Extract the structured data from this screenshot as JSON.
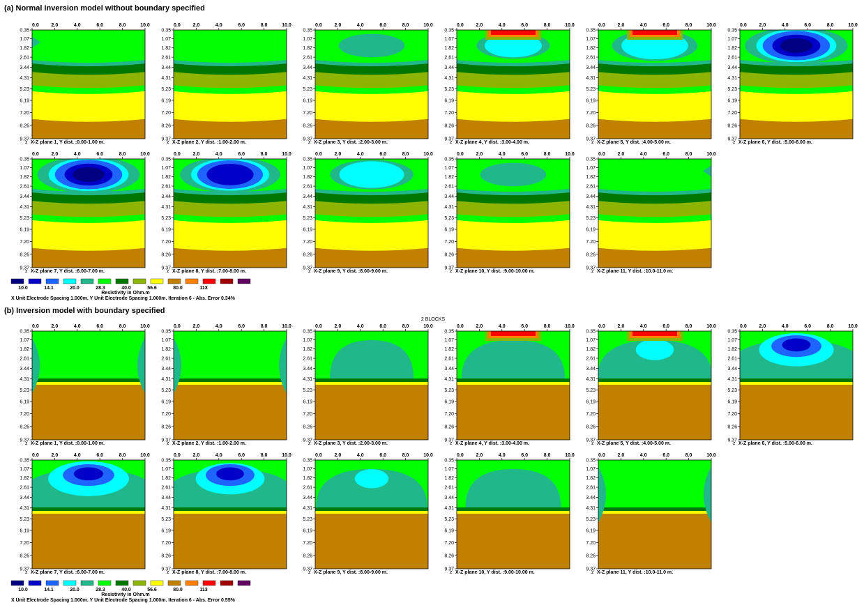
{
  "sections": [
    {
      "title": "(a)  Normal inversion model without boundary specified",
      "model": "normal",
      "annotation": "",
      "footer": "X Unit Electrode Spacing 1.000m.  Y Unit Electrode Spacing 1.000m.    Iteration 6 - Abs. Error 0.34%"
    },
    {
      "title": "(b)  Inversion model with boundary specified",
      "model": "boundary",
      "annotation": "2 BLOCKS",
      "footer": "X Unit Electrode Spacing 1.000m.  Y Unit Electrode Spacing 1.000m.    Iteration 6 - Abs. Error 0.55%"
    }
  ],
  "x_ticks": [
    "0.0",
    "2.0",
    "4.0",
    "6.0",
    "8.0",
    "10.0"
  ],
  "depth_ticks": [
    "0.35",
    "1.07",
    "1.82",
    "2.61",
    "3.44",
    "4.31",
    "5.23",
    "6.19",
    "7.20",
    "8.26",
    "9.37"
  ],
  "depth_values": [
    0.35,
    1.07,
    1.82,
    2.61,
    3.44,
    4.31,
    5.23,
    6.19,
    7.2,
    8.26,
    9.37
  ],
  "z_label": "z",
  "planes": [
    {
      "label": "X-Z plane 1, Y dist. :0.00-1.00 m.",
      "y_center": 0.5,
      "intensity": [
        0.0,
        0.0
      ]
    },
    {
      "label": "X-Z plane 2, Y dist. :1.00-2.00 m.",
      "y_center": 1.5,
      "intensity": [
        0.0,
        0.0
      ]
    },
    {
      "label": "X-Z plane 3, Y dist. :2.00-3.00 m.",
      "y_center": 2.5,
      "intensity": [
        0.25,
        0.2
      ]
    },
    {
      "label": "X-Z plane 4, Y dist. :3.00-4.00 m.",
      "y_center": 3.5,
      "intensity": [
        0.4,
        0.45
      ]
    },
    {
      "label": "X-Z plane 5, Y dist. :4.00-5.00 m.",
      "y_center": 4.5,
      "intensity": [
        0.65,
        0.6
      ]
    },
    {
      "label": "X-Z plane 6, Y dist. :5.00-6.00 m.",
      "y_center": 5.5,
      "intensity": [
        1.0,
        0.95
      ]
    },
    {
      "label": "X-Z plane 7, Y dist. :6.00-7.00 m.",
      "y_center": 6.5,
      "intensity": [
        1.0,
        1.0
      ]
    },
    {
      "label": "X-Z plane 8, Y dist. :7.00-8.00 m.",
      "y_center": 7.5,
      "intensity": [
        0.95,
        0.9
      ]
    },
    {
      "label": "X-Z plane 9, Y dist. :8.00-9.00 m.",
      "y_center": 8.5,
      "intensity": [
        0.6,
        0.55
      ]
    },
    {
      "label": "X-Z plane 10, Y dist. :9.00-10.00 m.",
      "y_center": 9.5,
      "intensity": [
        0.25,
        0.35
      ]
    },
    {
      "label": "X-Z plane 11, Y dist. :10.0-11.0 m.",
      "y_center": 10.5,
      "intensity": [
        0.0,
        0.0
      ]
    }
  ],
  "conductive_top_planes": [
    4,
    5
  ],
  "legend": {
    "title": "Resistivity in Ohm.m",
    "labels": [
      "10.0",
      "14.1",
      "20.0",
      "28.3",
      "40.0",
      "56.6",
      "80.0",
      "113"
    ],
    "colors": [
      "#000080",
      "#0000c8",
      "#1e64ff",
      "#00ffff",
      "#20b88a",
      "#00ff00",
      "#007800",
      "#8cb400",
      "#ffff00",
      "#c08000",
      "#ff8000",
      "#ff0000",
      "#a00000",
      "#600060"
    ]
  },
  "chart_data": {
    "type": "heatmap",
    "x_range": [
      0,
      10
    ],
    "depth_range": [
      0.35,
      9.37
    ],
    "unit": "Ohm.m",
    "legend_thresholds": [
      10.0,
      14.1,
      20.0,
      28.3,
      40.0,
      56.6,
      80.0,
      113
    ]
  }
}
